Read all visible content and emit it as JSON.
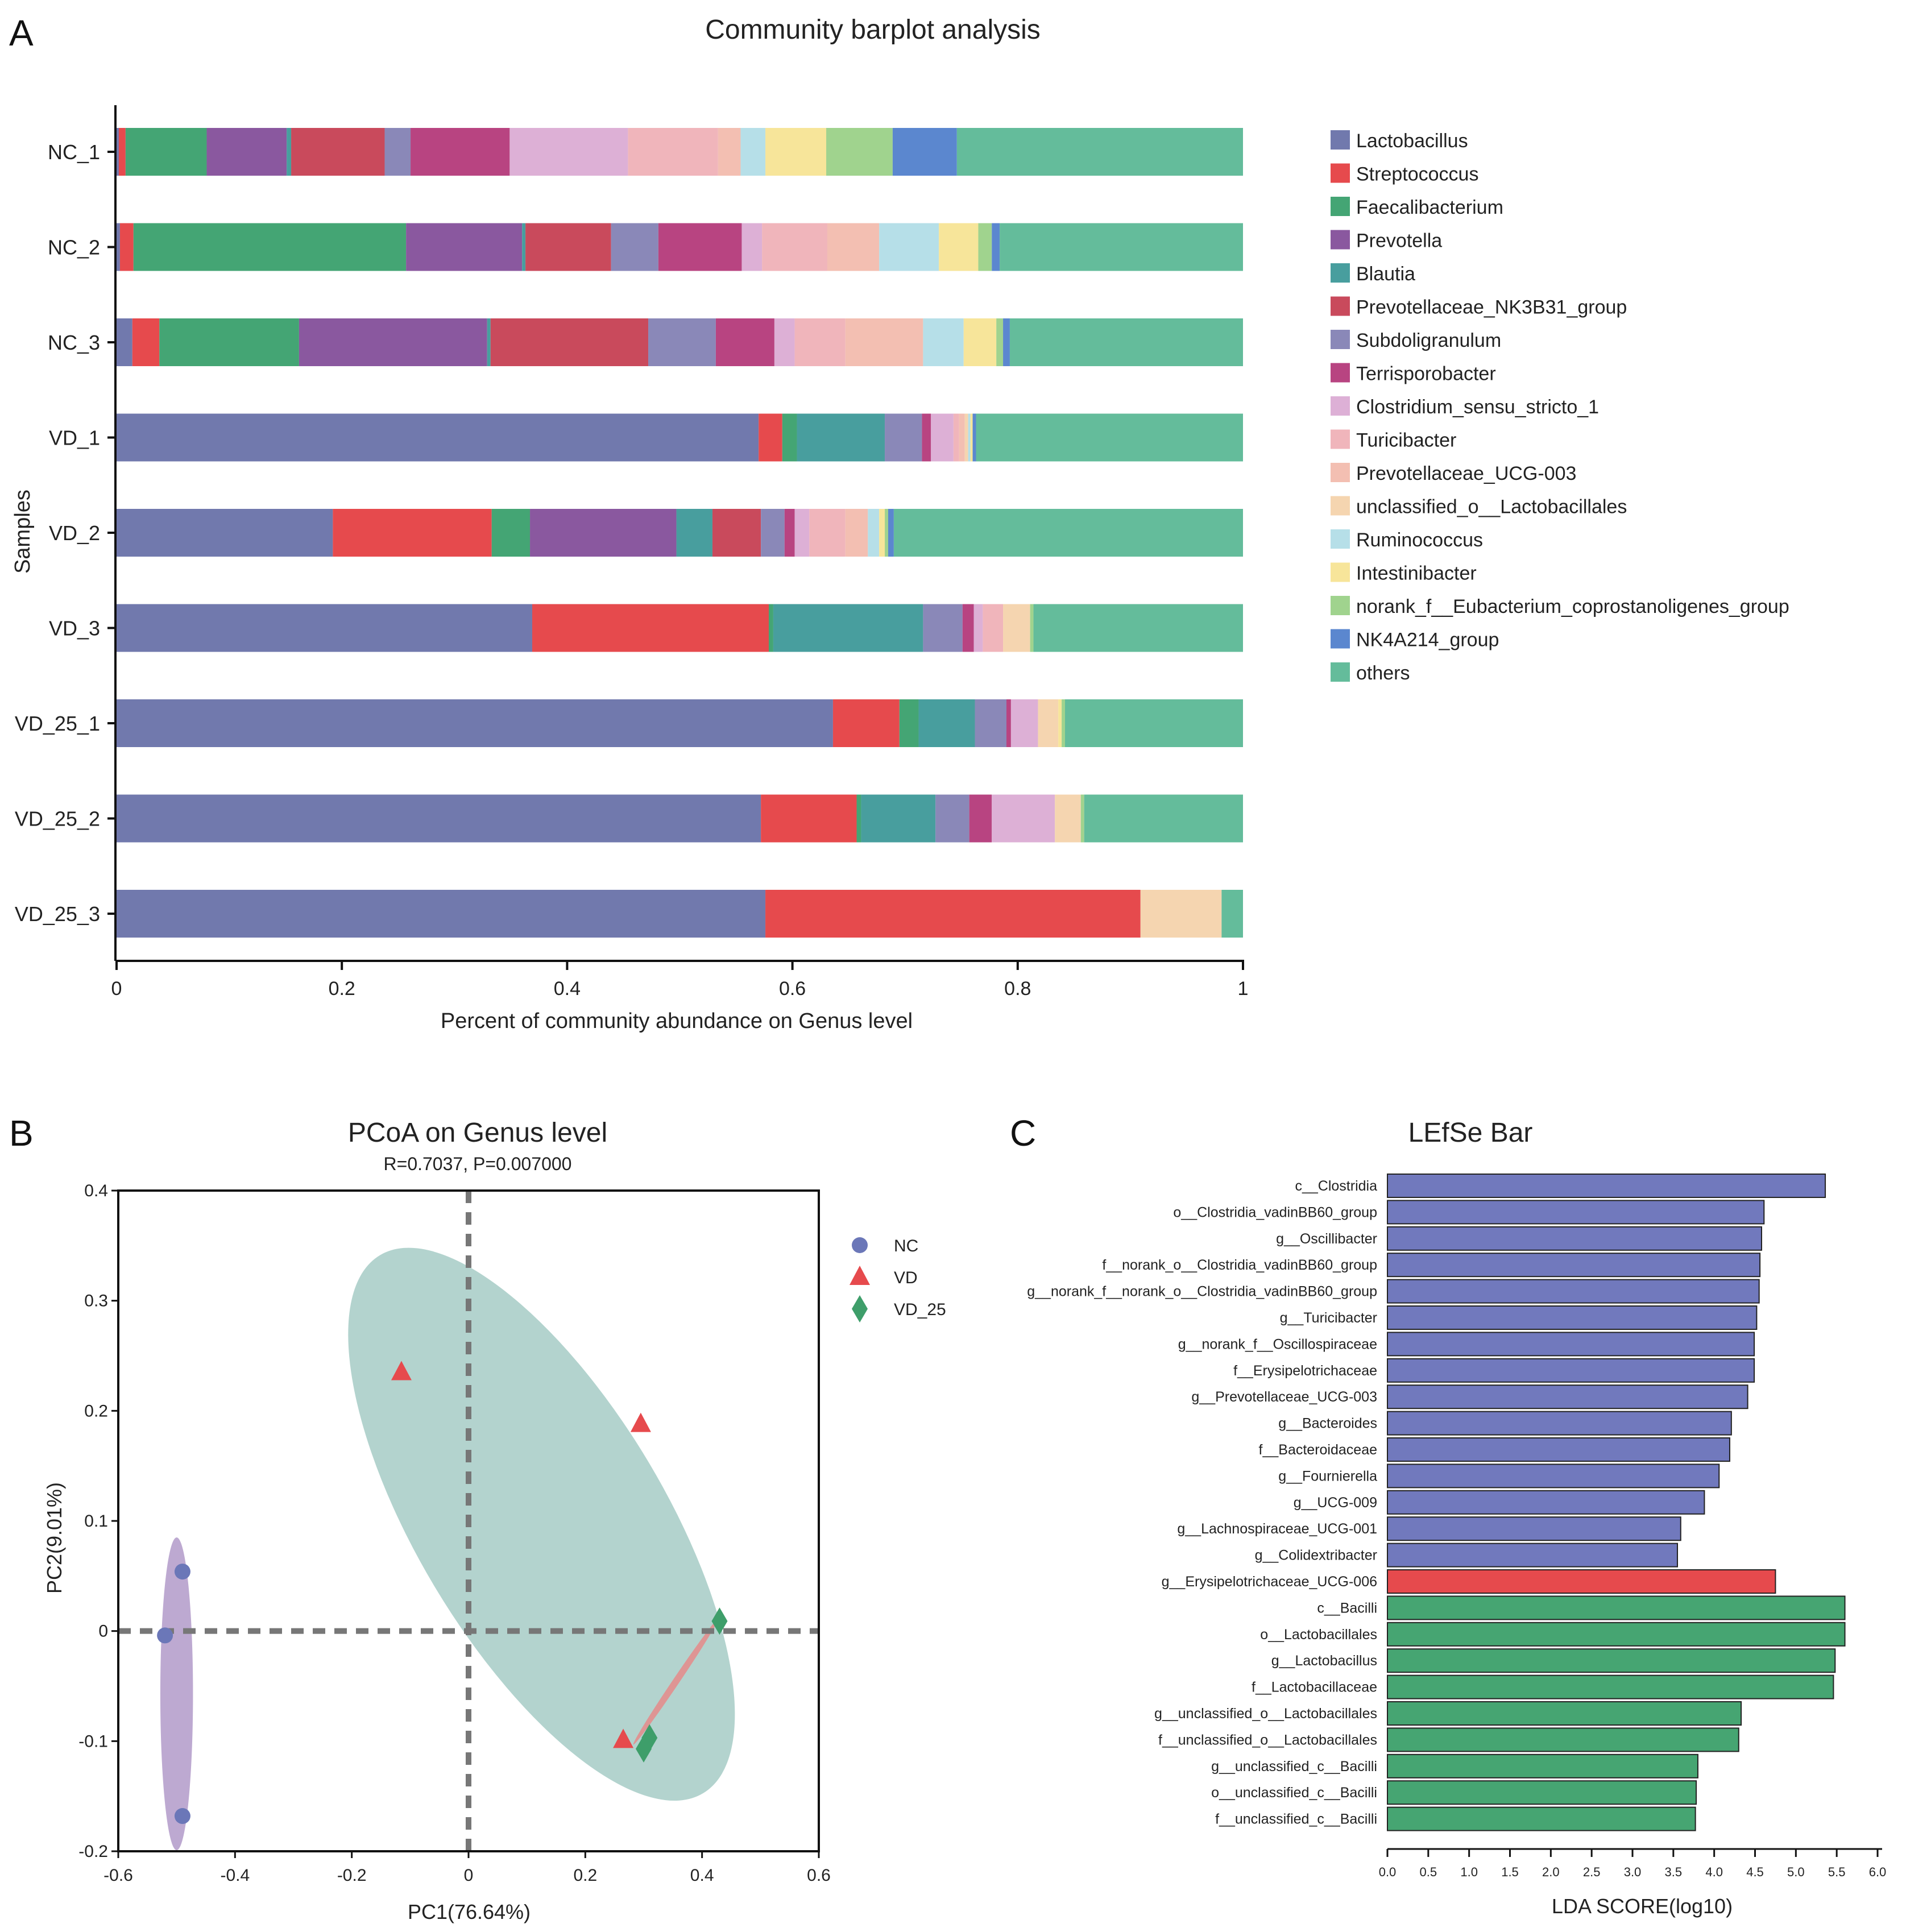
{
  "panels": {
    "a": "A",
    "b": "B",
    "c": "C"
  },
  "colors": {
    "Lactobacillus": "#7179ad",
    "Streptococcus": "#e64a4d",
    "Faecalibacterium": "#44a574",
    "Prevotella": "#8a589f",
    "Blautia": "#489e9e",
    "Prevotellaceae_NK3B31_group": "#c94a5c",
    "Subdoligranulum": "#8a88b8",
    "Terrisporobacter": "#b84481",
    "Clostridium_sensu_stricto_1": "#ddb0d6",
    "Turicibacter": "#f0b5bb",
    "Prevotellaceae_UCG-003": "#f3bfb2",
    "unclassified_o__Lactobacillales": "#f5d5b0",
    "Ruminococcus": "#b6dfe8",
    "Intestinibacter": "#f7e59a",
    "norank_f__Eubacterium_coprostanoligenes_group": "#a0d38e",
    "NK4A214_group": "#5b87cf",
    "others": "#64bc9b",
    "nc": "#6b77b8",
    "vd": "#e64a4d",
    "vd25": "#3e9e6a",
    "ellipse_nc": "#b29ac9",
    "ellipse_vd": "#a6cbc6",
    "ellipse_vd25": "#e58a8a",
    "lefse_nc": "#7179bd",
    "lefse_vd": "#e64a4d",
    "lefse_vd25": "#46a572"
  },
  "chart_data": [
    {
      "type": "bar",
      "orientation": "horizontal-stacked",
      "title": "Community barplot analysis",
      "xlabel": "Percent of community abundance on Genus level",
      "ylabel": "Samples",
      "xlim": [
        0,
        1
      ],
      "xticks": [
        "0",
        "0.2",
        "0.4",
        "0.6",
        "0.8",
        "1"
      ],
      "categories": [
        "NC_1",
        "NC_2",
        "NC_3",
        "VD_1",
        "VD_2",
        "VD_3",
        "VD_25_1",
        "VD_25_2",
        "VD_25_3"
      ],
      "series": [
        {
          "name": "Lactobacillus",
          "values": [
            0.002,
            0.003,
            0.014,
            0.57,
            0.192,
            0.369,
            0.636,
            0.572,
            0.576
          ]
        },
        {
          "name": "Streptococcus",
          "values": [
            0.006,
            0.012,
            0.024,
            0.021,
            0.141,
            0.21,
            0.059,
            0.085,
            0.333
          ]
        },
        {
          "name": "Faecalibacterium",
          "values": [
            0.072,
            0.242,
            0.124,
            0.013,
            0.034,
            0.004,
            0.017,
            0.004,
            0.0
          ]
        },
        {
          "name": "Prevotella",
          "values": [
            0.071,
            0.103,
            0.167,
            0.0,
            0.13,
            0.0,
            0.0,
            0.0,
            0.0
          ]
        },
        {
          "name": "Blautia",
          "values": [
            0.004,
            0.003,
            0.003,
            0.078,
            0.032,
            0.133,
            0.05,
            0.066,
            0.0
          ]
        },
        {
          "name": "Prevotellaceae_NK3B31_group",
          "values": [
            0.083,
            0.076,
            0.14,
            0.0,
            0.043,
            0.0,
            0.0,
            0.0,
            0.0
          ]
        },
        {
          "name": "Subdoligranulum",
          "values": [
            0.023,
            0.042,
            0.06,
            0.033,
            0.021,
            0.035,
            0.028,
            0.03,
            0.0
          ]
        },
        {
          "name": "Terrisporobacter",
          "values": [
            0.088,
            0.074,
            0.052,
            0.008,
            0.009,
            0.01,
            0.004,
            0.02,
            0.0
          ]
        },
        {
          "name": "Clostridium_sensu_stricto_1",
          "values": [
            0.105,
            0.018,
            0.018,
            0.02,
            0.013,
            0.008,
            0.024,
            0.056,
            0.0
          ]
        },
        {
          "name": "Turicibacter",
          "values": [
            0.08,
            0.058,
            0.045,
            0.005,
            0.032,
            0.018,
            0.0,
            0.0,
            0.0
          ]
        },
        {
          "name": "Prevotellaceae_UCG-003",
          "values": [
            0.02,
            0.046,
            0.069,
            0.005,
            0.02,
            0.0,
            0.0,
            0.0,
            0.0
          ]
        },
        {
          "name": "unclassified_o__Lactobacillales",
          "values": [
            0.0,
            0.0,
            0.0,
            0.003,
            0.0,
            0.024,
            0.018,
            0.023,
            0.072
          ]
        },
        {
          "name": "Ruminococcus",
          "values": [
            0.022,
            0.053,
            0.036,
            0.002,
            0.01,
            0.0,
            0.0,
            0.0,
            0.0
          ]
        },
        {
          "name": "Intestinibacter",
          "values": [
            0.054,
            0.035,
            0.029,
            0.002,
            0.005,
            0.0,
            0.003,
            0.0,
            0.0
          ]
        },
        {
          "name": "norank_f__Eubacterium_coprostanoligenes_group",
          "values": [
            0.059,
            0.012,
            0.006,
            0.0,
            0.003,
            0.003,
            0.003,
            0.003,
            0.0
          ]
        },
        {
          "name": "NK4A214_group",
          "values": [
            0.057,
            0.007,
            0.006,
            0.003,
            0.005,
            0.0,
            0.0,
            0.0,
            0.0
          ]
        },
        {
          "name": "others",
          "values": [
            0.254,
            0.216,
            0.207,
            0.237,
            0.31,
            0.186,
            0.158,
            0.141,
            0.019
          ]
        }
      ]
    },
    {
      "type": "scatter",
      "title": "PCoA on Genus level",
      "subtitle": "R=0.7037, P=0.007000",
      "xlabel": "PC1(76.64%)",
      "ylabel": "PC2(9.01%)",
      "xlim": [
        -0.6,
        0.6
      ],
      "ylim": [
        -0.2,
        0.4
      ],
      "xticks": [
        "-0.6",
        "-0.4",
        "-0.2",
        "0",
        "0.2",
        "0.4",
        "0.6"
      ],
      "yticks": [
        "-0.2",
        "-0.1",
        "0",
        "0.1",
        "0.2",
        "0.3",
        "0.4"
      ],
      "legend": [
        "NC",
        "VD",
        "VD_25"
      ],
      "series": [
        {
          "name": "NC",
          "x": [
            -0.49,
            -0.52,
            -0.49
          ],
          "y": [
            0.054,
            -0.004,
            -0.168
          ]
        },
        {
          "name": "VD",
          "x": [
            -0.115,
            0.295,
            0.265
          ],
          "y": [
            0.235,
            0.188,
            -0.099
          ]
        },
        {
          "name": "VD_25",
          "x": [
            0.43,
            0.31,
            0.3
          ],
          "y": [
            0.009,
            -0.097,
            -0.107
          ]
        }
      ],
      "ellipses": [
        {
          "group": "NC",
          "cx": -0.5,
          "cy": -0.057,
          "rx": 0.028,
          "ry": 0.142,
          "angle": 0
        },
        {
          "group": "VD",
          "cx": 0.125,
          "cy": 0.097,
          "rx": 0.212,
          "ry": 0.285,
          "angle": -31
        },
        {
          "group": "VD_25",
          "cx": 0.355,
          "cy": -0.046,
          "rx": 0.13,
          "ry": 0.003,
          "angle": -56
        }
      ]
    },
    {
      "type": "bar",
      "orientation": "horizontal",
      "title": "LEfSe Bar",
      "xlabel": "LDA SCORE(log10)",
      "xlim": [
        0,
        6
      ],
      "xticks": [
        "0.0",
        "0.5",
        "1.0",
        "1.5",
        "2.0",
        "2.5",
        "3.0",
        "3.5",
        "4.0",
        "4.5",
        "5.0",
        "5.5",
        "6.0"
      ],
      "categories": [
        "c__Clostridia",
        "o__Clostridia_vadinBB60_group",
        "g__Oscillibacter",
        "f__norank_o__Clostridia_vadinBB60_group",
        "g__norank_f__norank_o__Clostridia_vadinBB60_group",
        "g__Turicibacter",
        "g__norank_f__Oscillospiraceae",
        "f__Erysipelotrichaceae",
        "g__Prevotellaceae_UCG-003",
        "g__Bacteroides",
        "f__Bacteroidaceae",
        "g__Fournierella",
        "g__UCG-009",
        "g__Lachnospiraceae_UCG-001",
        "g__Colidextribacter",
        "g__Erysipelotrichaceae_UCG-006",
        "c__Bacilli",
        "o__Lactobacillales",
        "g__Lactobacillus",
        "f__Lactobacillaceae",
        "g__unclassified_o__Lactobacillales",
        "f__unclassified_o__Lactobacillales",
        "g__unclassified_c__Bacilli",
        "o__unclassified_c__Bacilli",
        "f__unclassified_c__Bacilli"
      ],
      "values": [
        5.36,
        4.61,
        4.58,
        4.56,
        4.55,
        4.52,
        4.49,
        4.49,
        4.41,
        4.21,
        4.19,
        4.06,
        3.88,
        3.59,
        3.55,
        4.75,
        5.6,
        5.6,
        5.48,
        5.46,
        4.33,
        4.3,
        3.8,
        3.78,
        3.77
      ],
      "groups": [
        "NC",
        "NC",
        "NC",
        "NC",
        "NC",
        "NC",
        "NC",
        "NC",
        "NC",
        "NC",
        "NC",
        "NC",
        "NC",
        "NC",
        "NC",
        "VD",
        "VD_25",
        "VD_25",
        "VD_25",
        "VD_25",
        "VD_25",
        "VD_25",
        "VD_25",
        "VD_25",
        "VD_25"
      ]
    }
  ]
}
